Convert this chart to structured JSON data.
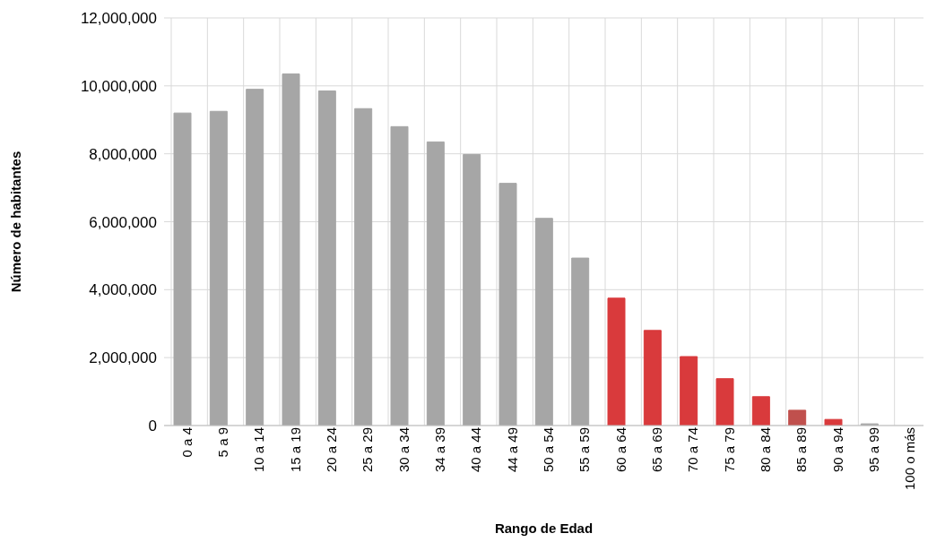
{
  "chart_data": {
    "type": "bar",
    "xlabel": "Rango de Edad",
    "ylabel": "Número de habitantes",
    "categories": [
      "0 a 4",
      "5 a 9",
      "10 a 14",
      "15 a 19",
      "20 a 24",
      "25 a 29",
      "30 a 34",
      "34 a 39",
      "40 a 44",
      "44 a 49",
      "50 a 54",
      "55 a 59",
      "60 a 64",
      "65 a 69",
      "70 a 74",
      "75 a 79",
      "80 a 84",
      "85 a 89",
      "90 a 94",
      "95 a 99",
      "100 o más"
    ],
    "values": [
      9200000,
      9250000,
      9900000,
      10350000,
      9850000,
      9330000,
      8800000,
      8350000,
      7980000,
      7130000,
      6100000,
      4930000,
      3750000,
      2800000,
      2030000,
      1380000,
      850000,
      450000,
      180000,
      50000,
      null
    ],
    "colors": [
      "#a6a6a6",
      "#a6a6a6",
      "#a6a6a6",
      "#a6a6a6",
      "#a6a6a6",
      "#a6a6a6",
      "#a6a6a6",
      "#a6a6a6",
      "#a6a6a6",
      "#a6a6a6",
      "#a6a6a6",
      "#a6a6a6",
      "#d93a3c",
      "#d93a3c",
      "#d93a3c",
      "#d93a3c",
      "#d93a3c",
      "#c0504d",
      "#d93a3c",
      "#a6a6a6",
      "#a6a6a6"
    ],
    "ylim": [
      0,
      12000000
    ],
    "yticks": [
      0,
      {
        "value": 2000000,
        "label": "2,000,000"
      },
      {
        "value": 4000000,
        "label": "4,000,000"
      },
      {
        "value": 6000000,
        "label": "6,000,000"
      },
      {
        "value": 8000000,
        "label": "8,000,000"
      },
      {
        "value": 10000000,
        "label": "10,000,000"
      },
      {
        "value": 12000000,
        "label": "12,000,000"
      }
    ],
    "grid": true
  }
}
